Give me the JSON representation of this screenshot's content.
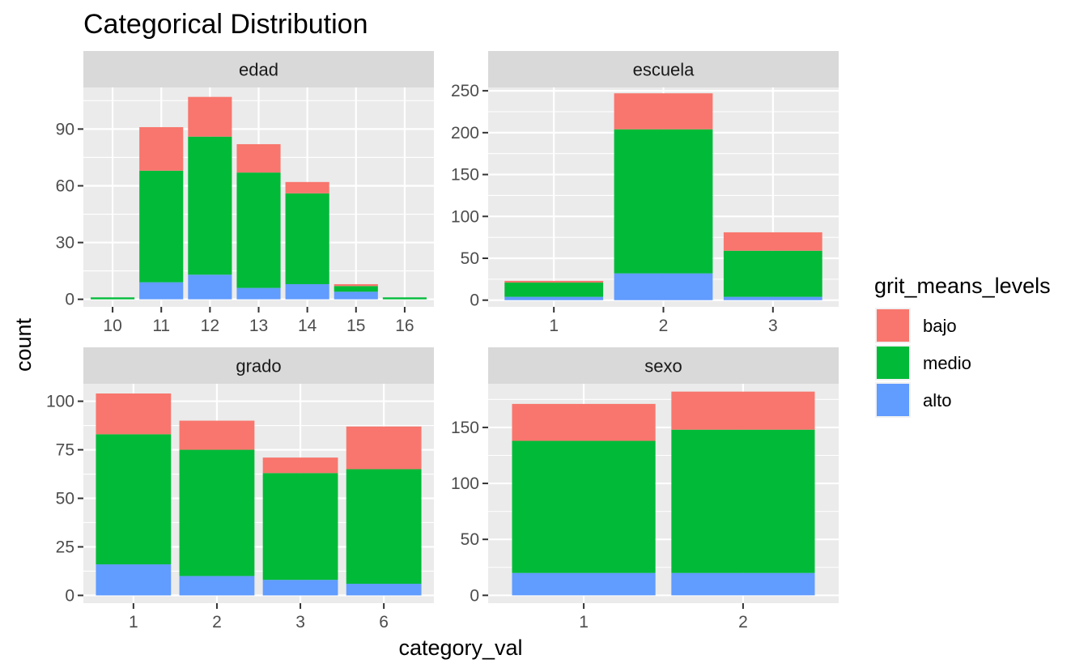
{
  "chart_data": {
    "type": "bar",
    "stacked": true,
    "title": "Categorical Distribution",
    "xlabel": "category_val",
    "ylabel": "count",
    "grid": true,
    "legend": {
      "title": "grit_means_levels",
      "position": "right",
      "entries": [
        {
          "name": "bajo",
          "color": "#F8766D"
        },
        {
          "name": "medio",
          "color": "#00BA38"
        },
        {
          "name": "alto",
          "color": "#619CFF"
        }
      ]
    },
    "panels": [
      {
        "name": "edad",
        "categories": [
          "10",
          "11",
          "12",
          "13",
          "14",
          "15",
          "16"
        ],
        "ylim": [
          -4,
          112
        ],
        "yticks": [
          0,
          30,
          60,
          90
        ],
        "series": [
          {
            "name": "alto",
            "values": [
              0,
              9,
              13,
              6,
              8,
              4,
              0
            ]
          },
          {
            "name": "medio",
            "values": [
              1,
              59,
              73,
              61,
              48,
              3,
              1
            ]
          },
          {
            "name": "bajo",
            "values": [
              0,
              23,
              21,
              15,
              6,
              1,
              0
            ]
          }
        ]
      },
      {
        "name": "escuela",
        "categories": [
          "1",
          "2",
          "3"
        ],
        "ylim": [
          -8,
          254
        ],
        "yticks": [
          0,
          50,
          100,
          150,
          200,
          250
        ],
        "series": [
          {
            "name": "alto",
            "values": [
              4,
              32,
              4
            ]
          },
          {
            "name": "medio",
            "values": [
              17,
              172,
              55
            ]
          },
          {
            "name": "bajo",
            "values": [
              2,
              43,
              22
            ]
          }
        ]
      },
      {
        "name": "grado",
        "categories": [
          "1",
          "2",
          "3",
          "6"
        ],
        "ylim": [
          -4,
          109
        ],
        "yticks": [
          0,
          25,
          50,
          75,
          100
        ],
        "series": [
          {
            "name": "alto",
            "values": [
              16,
              10,
              8,
              6
            ]
          },
          {
            "name": "medio",
            "values": [
              67,
              65,
              55,
              59
            ]
          },
          {
            "name": "bajo",
            "values": [
              21,
              15,
              8,
              22
            ]
          }
        ]
      },
      {
        "name": "sexo",
        "categories": [
          "1",
          "2"
        ],
        "ylim": [
          -7,
          189
        ],
        "yticks": [
          0,
          50,
          100,
          150
        ],
        "series": [
          {
            "name": "alto",
            "values": [
              20,
              20
            ]
          },
          {
            "name": "medio",
            "values": [
              118,
              128
            ]
          },
          {
            "name": "bajo",
            "values": [
              33,
              34
            ]
          }
        ]
      }
    ]
  }
}
